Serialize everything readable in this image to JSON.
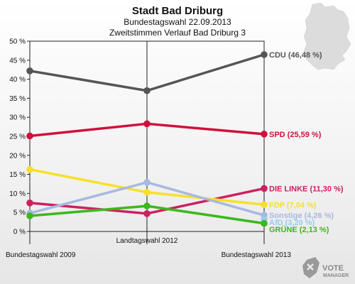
{
  "chart_data": {
    "type": "line",
    "title": "Stadt Bad Driburg",
    "subtitle": "Bundestagswahl 22.09.2013",
    "subtitle2": "Zweitstimmen Verlauf Bad Driburg 3",
    "categories": [
      "Bundestagswahl 2009",
      "Landtagswahl 2012",
      "Bundestagswahl 2013"
    ],
    "ylim": [
      0,
      50
    ],
    "yticks": [
      "0 %",
      "5 %",
      "10 %",
      "15 %",
      "20 %",
      "25 %",
      "30 %",
      "35 %",
      "40 %",
      "45 %",
      "50 %"
    ],
    "grid": false,
    "series": [
      {
        "name": "CDU",
        "label": "CDU (46,48 %)",
        "color": "#555555",
        "values": [
          42.2,
          37.0,
          46.48
        ]
      },
      {
        "name": "SPD",
        "label": "SPD (25,59 %)",
        "color": "#d0103a",
        "values": [
          25.1,
          28.3,
          25.59
        ]
      },
      {
        "name": "DIE LINKE",
        "label": "DIE LINKE (11,30 %)",
        "color": "#cc2060",
        "values": [
          7.5,
          4.7,
          11.3
        ]
      },
      {
        "name": "FDP",
        "label": "FDP (7,04 %)",
        "color": "#f5e12a",
        "values": [
          16.3,
          10.3,
          7.04
        ]
      },
      {
        "name": "Sonstige",
        "label": "Sonstige (4,26 %)",
        "color": "#a8b8e0",
        "values": [
          4.8,
          12.9,
          4.26
        ]
      },
      {
        "name": "AfD",
        "label": "AfD (3,20 %)",
        "color": "#99ccee",
        "values": [
          null,
          null,
          3.2
        ]
      },
      {
        "name": "GRÜNE",
        "label": "GRÜNE (2,13 %)",
        "color": "#3cb81c",
        "values": [
          4.1,
          6.7,
          2.13
        ]
      }
    ]
  },
  "logo": {
    "text_top": "VOTE",
    "text_bottom": "MANAGER"
  }
}
